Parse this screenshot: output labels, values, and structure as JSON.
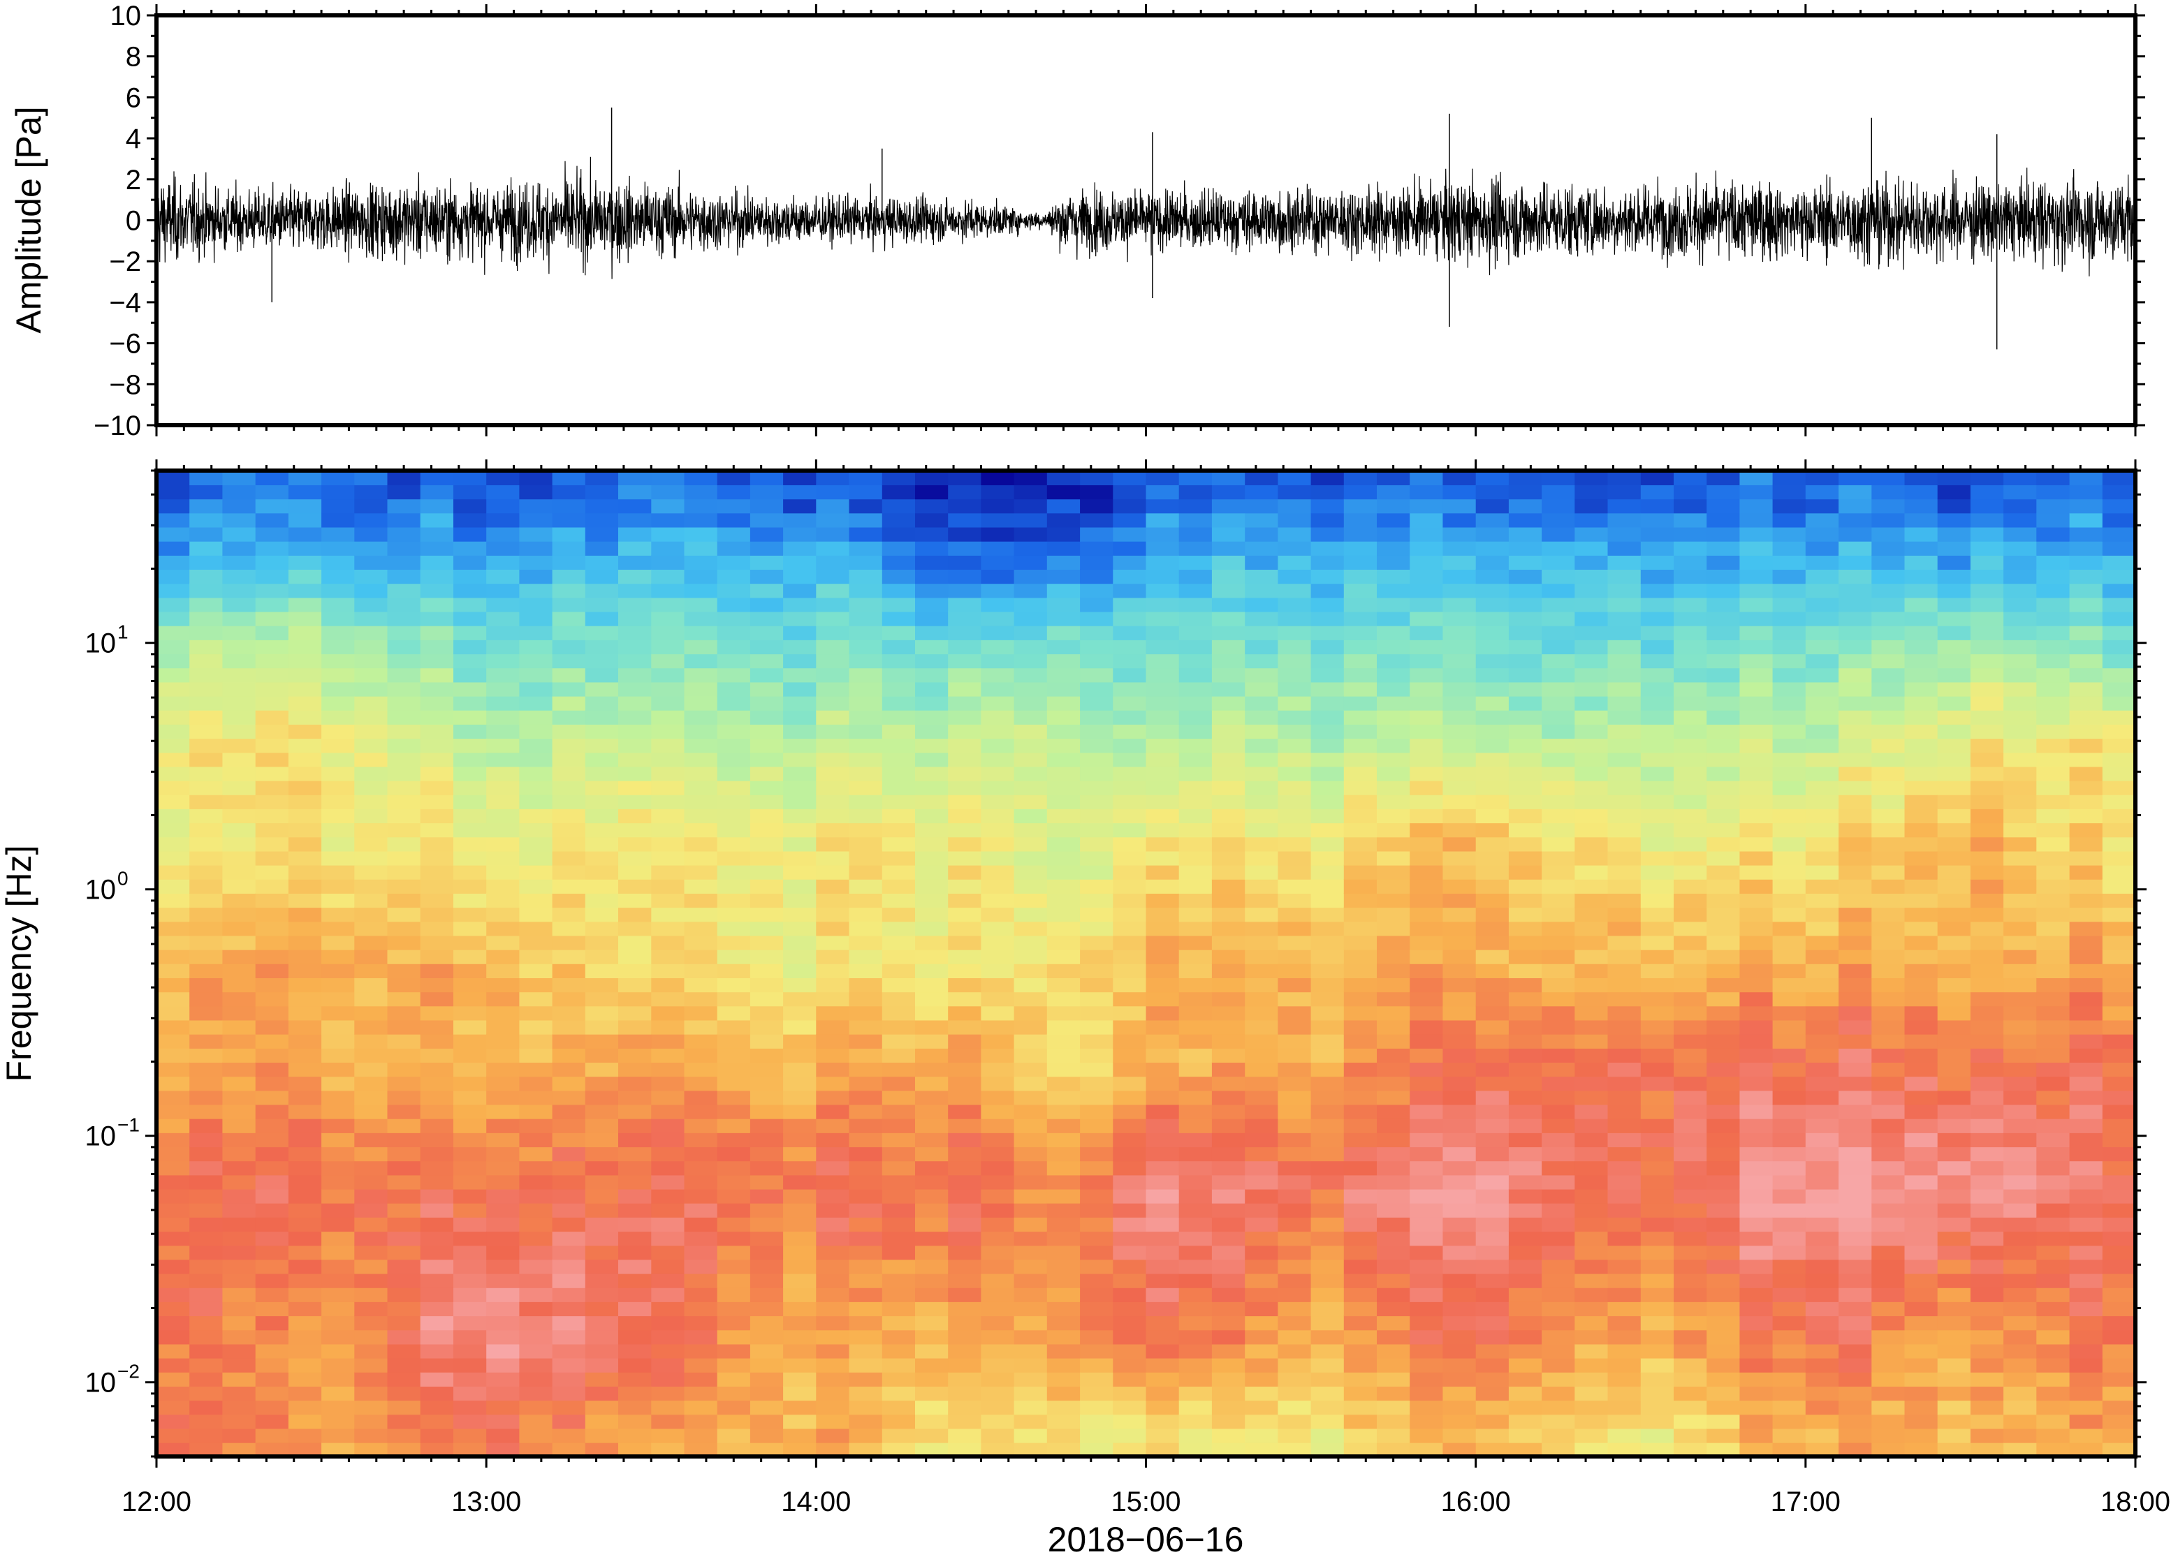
{
  "chart_data": [
    {
      "type": "line",
      "panel": "waveform",
      "ylabel": "Amplitude [Pa]",
      "ylim": [
        -10,
        10
      ],
      "yticks": [
        10,
        8,
        6,
        4,
        2,
        0,
        -2,
        -4,
        -6,
        -8,
        -10
      ],
      "ytick_labels": [
        "10",
        "8",
        "6",
        "4",
        "2",
        "0",
        "−2",
        "−4",
        "−6",
        "−8",
        "−10"
      ],
      "xlim_hours": [
        12,
        18
      ],
      "line_color": "#000000",
      "envelope": {
        "hours": [
          12.0,
          12.25,
          12.5,
          12.75,
          13.0,
          13.25,
          13.5,
          13.75,
          14.0,
          14.25,
          14.5,
          14.7,
          14.75,
          15.0,
          15.25,
          15.5,
          15.75,
          16.0,
          16.25,
          16.5,
          16.75,
          17.0,
          17.25,
          17.5,
          17.75,
          18.0
        ],
        "amplitude": [
          2.4,
          1.6,
          1.7,
          2.1,
          1.9,
          2.3,
          2.0,
          1.5,
          1.2,
          1.3,
          1.0,
          0.4,
          1.7,
          1.6,
          1.6,
          1.7,
          1.8,
          2.3,
          2.0,
          1.8,
          2.2,
          1.9,
          2.3,
          2.0,
          2.2,
          2.3
        ]
      },
      "peaks": [
        {
          "hour": 12.35,
          "value": -4.0
        },
        {
          "hour": 13.38,
          "value": 5.5
        },
        {
          "hour": 14.2,
          "value": 3.5
        },
        {
          "hour": 15.02,
          "value": -3.8
        },
        {
          "hour": 15.02,
          "value": 4.3
        },
        {
          "hour": 15.92,
          "value": 5.2
        },
        {
          "hour": 15.92,
          "value": -5.2
        },
        {
          "hour": 17.2,
          "value": 5.0
        },
        {
          "hour": 17.58,
          "value": -6.3
        },
        {
          "hour": 17.58,
          "value": 4.2
        }
      ]
    },
    {
      "type": "heatmap",
      "panel": "spectrogram",
      "ylabel": "Frequency [Hz]",
      "yscale": "log",
      "ylim": [
        0.005,
        50
      ],
      "yticks": [
        0.01,
        0.1,
        1,
        10
      ],
      "ytick_labels": [
        {
          "base": "10",
          "exp": "−2"
        },
        {
          "base": "10",
          "exp": "−1"
        },
        {
          "base": "10",
          "exp": "0"
        },
        {
          "base": "10",
          "exp": "1"
        }
      ],
      "xlim_hours": [
        12,
        18
      ],
      "colormap": "rainbow (blue = low power, pink = high power)",
      "colormap_stops": [
        "#08089a",
        "#1c6ae8",
        "#45c3f0",
        "#7fe3cc",
        "#c3f29a",
        "#f6ea7a",
        "#f9b04f",
        "#f0684f",
        "#f7a6a6"
      ],
      "time_step_hours": 0.1,
      "columns": [
        {
          "hour": 12.0,
          "c": [
            7,
            7,
            7,
            6,
            6,
            5,
            5,
            4,
            2,
            1
          ]
        },
        {
          "hour": 12.5,
          "c": [
            6,
            6,
            7,
            6,
            6,
            5,
            5,
            4,
            2,
            1
          ]
        },
        {
          "hour": 13.0,
          "c": [
            7,
            8,
            7,
            6,
            6,
            5,
            4,
            3,
            2,
            1
          ]
        },
        {
          "hour": 13.5,
          "c": [
            6,
            7,
            7,
            6,
            5,
            5,
            4,
            3,
            2,
            1
          ]
        },
        {
          "hour": 14.0,
          "c": [
            6,
            6,
            7,
            6,
            5,
            5,
            4,
            3,
            2,
            1
          ]
        },
        {
          "hour": 14.5,
          "c": [
            5,
            6,
            7,
            6,
            5,
            5,
            4,
            3,
            1,
            0
          ]
        },
        {
          "hour": 14.7,
          "c": [
            5,
            6,
            6,
            5,
            5,
            4,
            4,
            3,
            1,
            0
          ]
        },
        {
          "hour": 15.0,
          "c": [
            5,
            7,
            8,
            6,
            6,
            5,
            4,
            3,
            2,
            1
          ]
        },
        {
          "hour": 15.5,
          "c": [
            5,
            6,
            7,
            6,
            6,
            5,
            4,
            3,
            2,
            1
          ]
        },
        {
          "hour": 16.0,
          "c": [
            6,
            7,
            8,
            7,
            6,
            6,
            4,
            3,
            2,
            1
          ]
        },
        {
          "hour": 16.5,
          "c": [
            5,
            6,
            7,
            7,
            6,
            5,
            4,
            3,
            2,
            1
          ]
        },
        {
          "hour": 17.0,
          "c": [
            6,
            7,
            8,
            7,
            6,
            5,
            4,
            3,
            2,
            1
          ]
        },
        {
          "hour": 17.5,
          "c": [
            6,
            6,
            8,
            7,
            6,
            6,
            5,
            4,
            2,
            1
          ]
        },
        {
          "hour": 18.0,
          "c": [
            6,
            7,
            7,
            7,
            6,
            5,
            5,
            3,
            2,
            1
          ]
        }
      ],
      "band_frequencies_hz": [
        0.006,
        0.015,
        0.06,
        0.2,
        0.5,
        1.5,
        4,
        9,
        20,
        40
      ]
    }
  ],
  "x_axis": {
    "tick_labels": [
      "12:00",
      "13:00",
      "14:00",
      "15:00",
      "16:00",
      "17:00",
      "18:00"
    ],
    "xlabel": "2018−06−16"
  }
}
